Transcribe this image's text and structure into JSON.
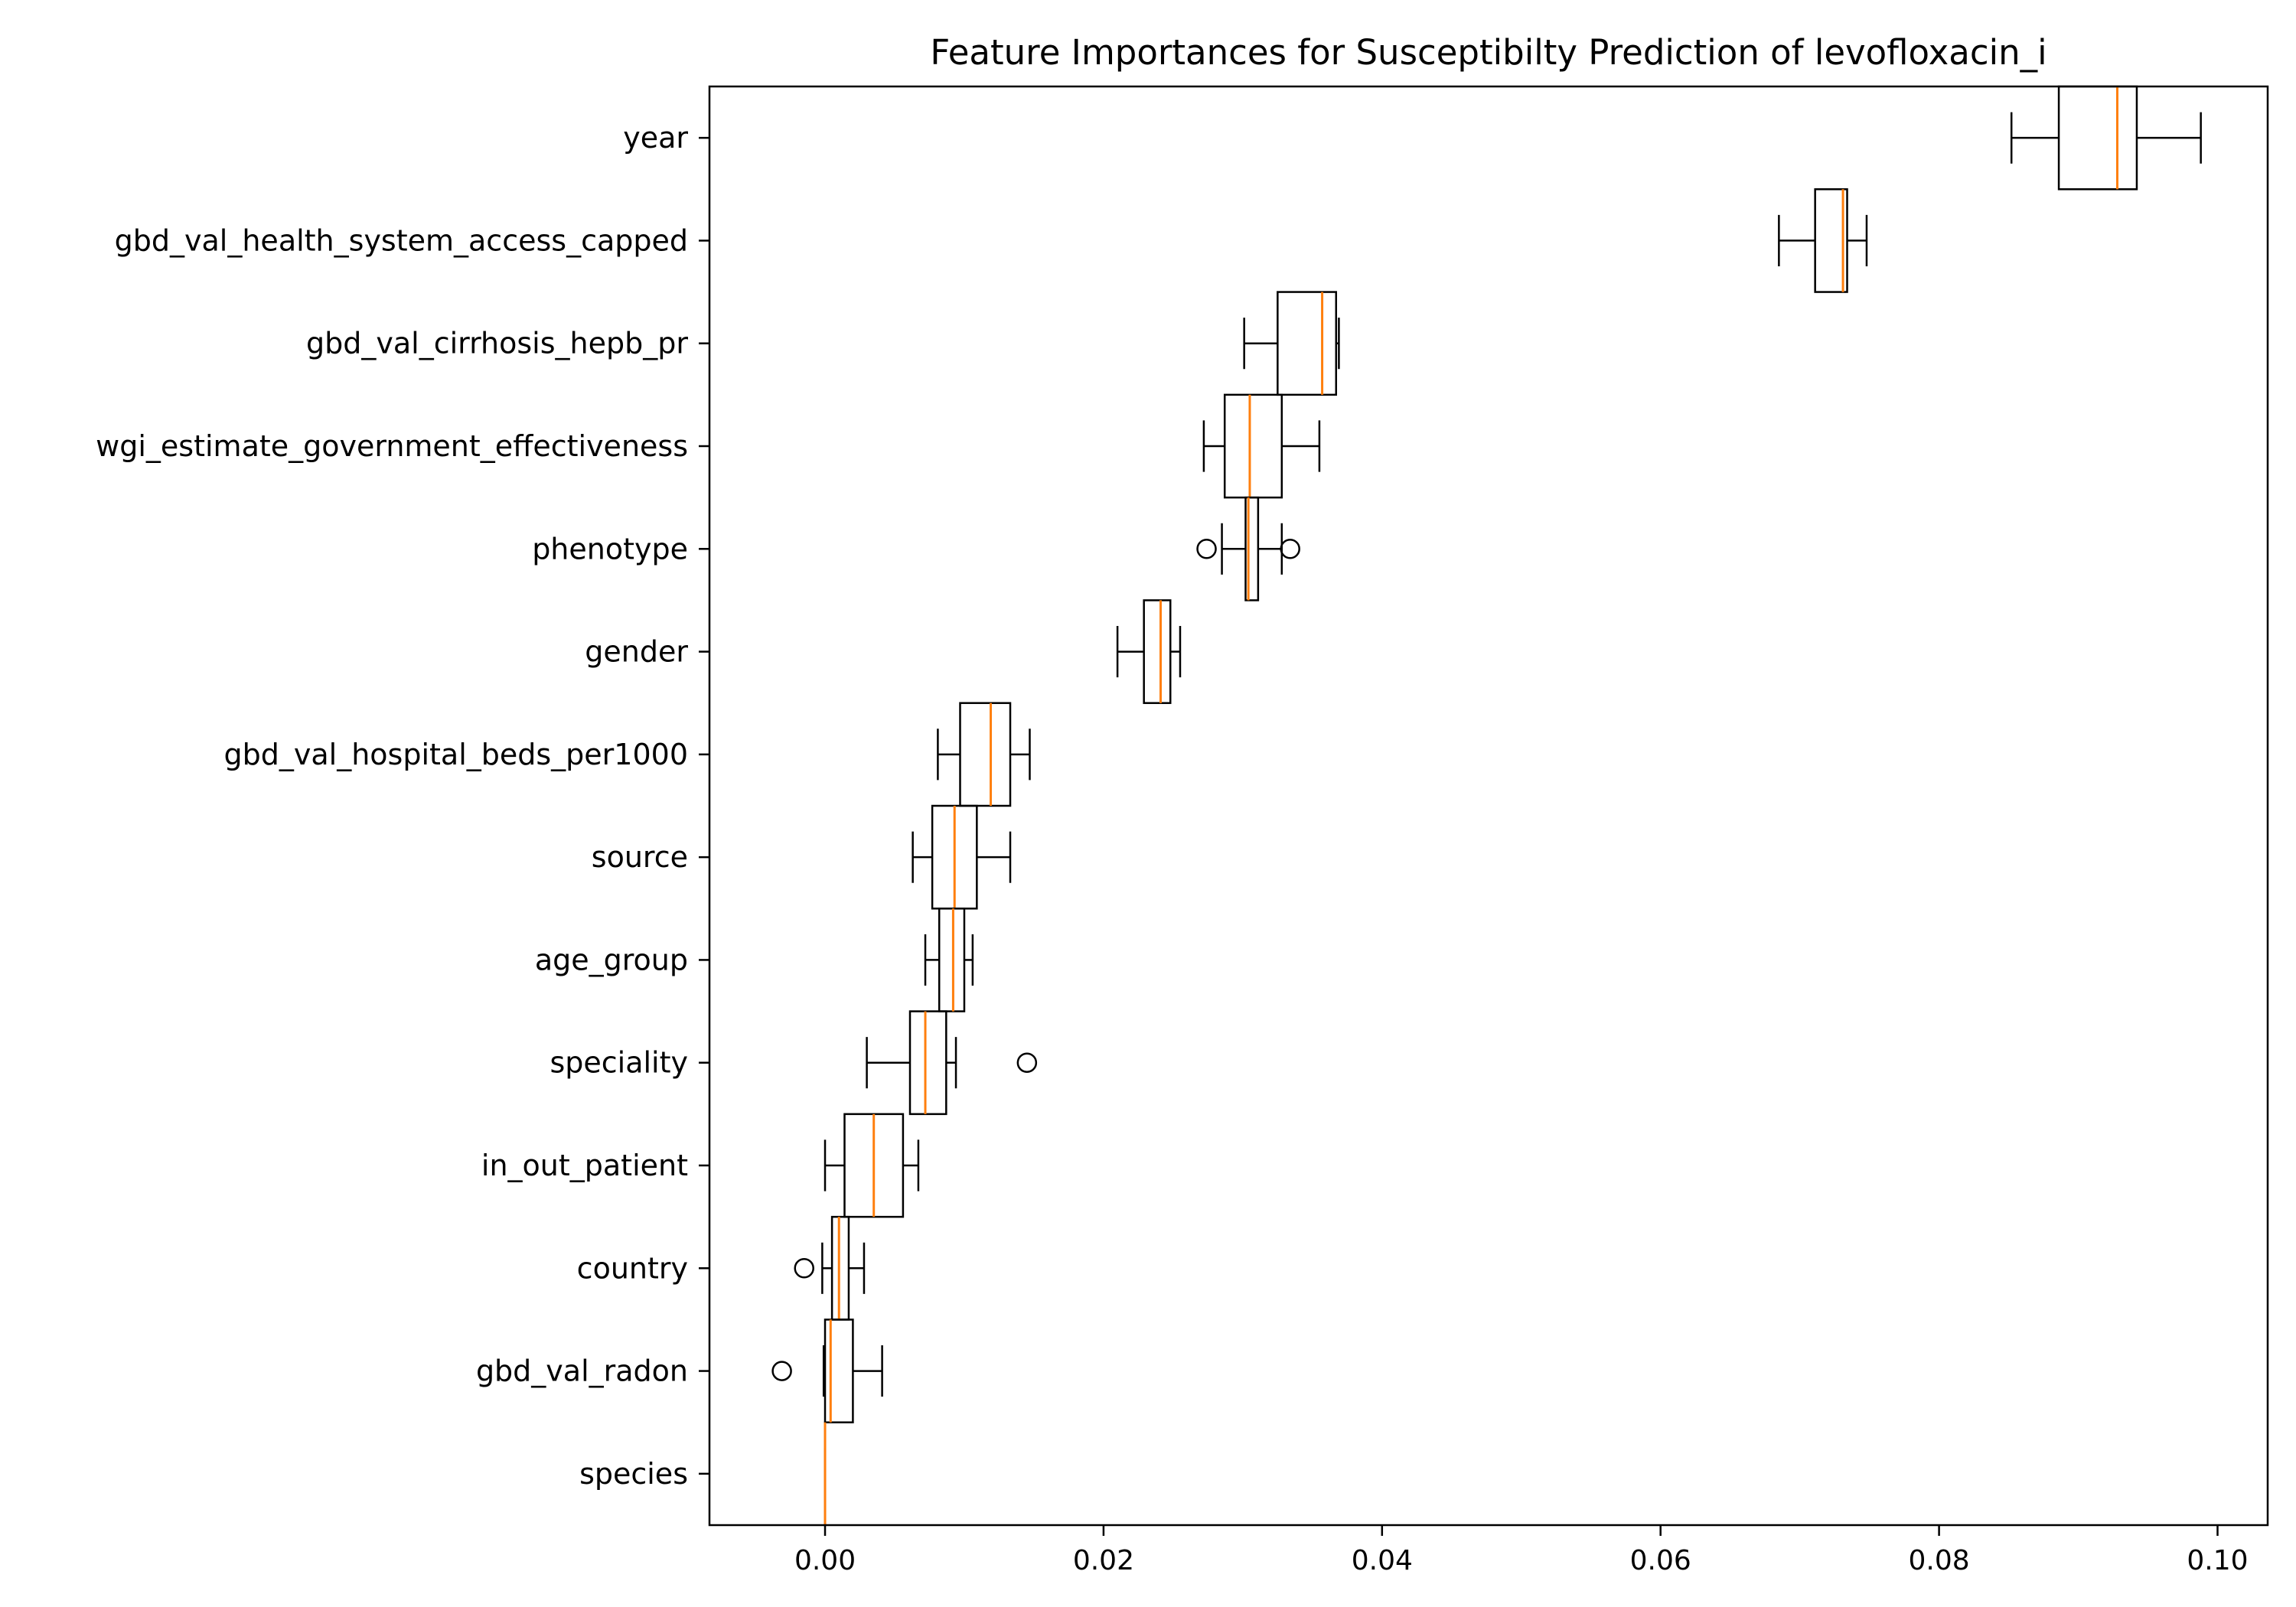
{
  "chart_data": {
    "type": "boxplot",
    "orientation": "horizontal",
    "title": "Feature Importances for Susceptibilty Prediction of levofloxacin_i",
    "xlabel": "",
    "ylabel": "",
    "xlim": [
      -0.0083,
      0.1036
    ],
    "xticks": [
      0.0,
      0.02,
      0.04,
      0.06,
      0.08,
      0.1
    ],
    "xtick_labels": [
      "0.00",
      "0.02",
      "0.04",
      "0.06",
      "0.08",
      "0.10"
    ],
    "grid": false,
    "colors": {
      "box": "#000000",
      "median": "#ff7f0e",
      "background": "#ffffff"
    },
    "series": [
      {
        "label": "year",
        "whislo": 0.0852,
        "q1": 0.0886,
        "med": 0.0928,
        "q3": 0.0942,
        "whishi": 0.0988,
        "fliers": []
      },
      {
        "label": "gbd_val_health_system_access_capped",
        "whislo": 0.0685,
        "q1": 0.0711,
        "med": 0.0731,
        "q3": 0.0734,
        "whishi": 0.0748,
        "fliers": []
      },
      {
        "label": "gbd_val_cirrhosis_hepb_pr",
        "whislo": 0.0301,
        "q1": 0.0325,
        "med": 0.0357,
        "q3": 0.0367,
        "whishi": 0.0369,
        "fliers": []
      },
      {
        "label": "wgi_estimate_government_effectiveness",
        "whislo": 0.0272,
        "q1": 0.0287,
        "med": 0.0305,
        "q3": 0.0328,
        "whishi": 0.0355,
        "fliers": []
      },
      {
        "label": "phenotype",
        "whislo": 0.0285,
        "q1": 0.0302,
        "med": 0.0304,
        "q3": 0.0311,
        "whishi": 0.0328,
        "fliers": [
          0.0274,
          0.0334
        ]
      },
      {
        "label": "gender",
        "whislo": 0.021,
        "q1": 0.0229,
        "med": 0.0241,
        "q3": 0.0248,
        "whishi": 0.0255,
        "fliers": []
      },
      {
        "label": "gbd_val_hospital_beds_per1000",
        "whislo": 0.0081,
        "q1": 0.0097,
        "med": 0.0119,
        "q3": 0.0133,
        "whishi": 0.0147,
        "fliers": []
      },
      {
        "label": "source",
        "whislo": 0.0063,
        "q1": 0.0077,
        "med": 0.0093,
        "q3": 0.0109,
        "whishi": 0.0133,
        "fliers": []
      },
      {
        "label": "age_group",
        "whislo": 0.0072,
        "q1": 0.0082,
        "med": 0.0092,
        "q3": 0.01,
        "whishi": 0.0106,
        "fliers": []
      },
      {
        "label": "speciality",
        "whislo": 0.003,
        "q1": 0.0061,
        "med": 0.0072,
        "q3": 0.0087,
        "whishi": 0.0094,
        "fliers": [
          0.0145
        ]
      },
      {
        "label": "in_out_patient",
        "whislo": 0.0,
        "q1": 0.0014,
        "med": 0.0035,
        "q3": 0.0056,
        "whishi": 0.0067,
        "fliers": []
      },
      {
        "label": "country",
        "whislo": -0.0002,
        "q1": 0.0005,
        "med": 0.001,
        "q3": 0.0017,
        "whishi": 0.0028,
        "fliers": [
          -0.0015
        ]
      },
      {
        "label": "gbd_val_radon",
        "whislo": -0.0001,
        "q1": 0.0,
        "med": 0.0004,
        "q3": 0.002,
        "whishi": 0.0041,
        "fliers": [
          -0.0031
        ]
      },
      {
        "label": "species",
        "whislo": 0.0,
        "q1": 0.0,
        "med": 0.0,
        "q3": 0.0,
        "whishi": 0.0,
        "fliers": []
      }
    ]
  }
}
